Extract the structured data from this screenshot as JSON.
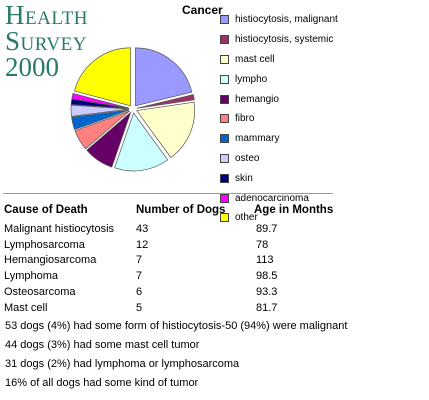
{
  "title": {
    "line1": "Health Survey",
    "line2": "2000"
  },
  "chart_data": {
    "type": "pie",
    "title": "Cancer",
    "exploded": true,
    "slices": [
      {
        "label": "histiocytosis, malignant",
        "value": 21.2,
        "color": "#9999ff"
      },
      {
        "label": "histiocytosis, systemic",
        "value": 1.5,
        "color": "#993366"
      },
      {
        "label": "mast cell",
        "value": 17.3,
        "color": "#ffffcc"
      },
      {
        "label": "lympho",
        "value": 15.3,
        "color": "#ccffff"
      },
      {
        "label": "hemangio",
        "value": 8.4,
        "color": "#660066"
      },
      {
        "label": "fibro",
        "value": 5.8,
        "color": "#ff8080"
      },
      {
        "label": "mammary",
        "value": 3.5,
        "color": "#0066cc"
      },
      {
        "label": "osteo",
        "value": 3.1,
        "color": "#ccccff"
      },
      {
        "label": "skin",
        "value": 1.5,
        "color": "#000080"
      },
      {
        "label": "adenocarcinoma",
        "value": 1.5,
        "color": "#ff00ff"
      },
      {
        "label": "other",
        "value": 20.9,
        "color": "#ffff00"
      }
    ]
  },
  "table": {
    "headers": [
      "Cause of Death",
      "Number of Dogs",
      "Age in Months"
    ],
    "rows": [
      [
        "Malignant histiocytosis",
        "43",
        "89.7"
      ],
      [
        "Lymphosarcoma",
        "12",
        "78"
      ],
      [
        "Hemangiosarcoma",
        "7",
        "113"
      ],
      [
        "Lymphoma",
        "7",
        "98.5"
      ],
      [
        "Osteosarcoma",
        "6",
        "93.3"
      ],
      [
        "Mast cell",
        "5",
        "81.7"
      ]
    ]
  },
  "notes": [
    "53 dogs (4%) had some form of histiocytosis-50 (94%) were malignant",
    "44 dogs (3%) had some mast cell tumor",
    "31 dogs (2%) had lymphoma or lymphosarcoma",
    "16% of all dogs had some kind of tumor"
  ]
}
